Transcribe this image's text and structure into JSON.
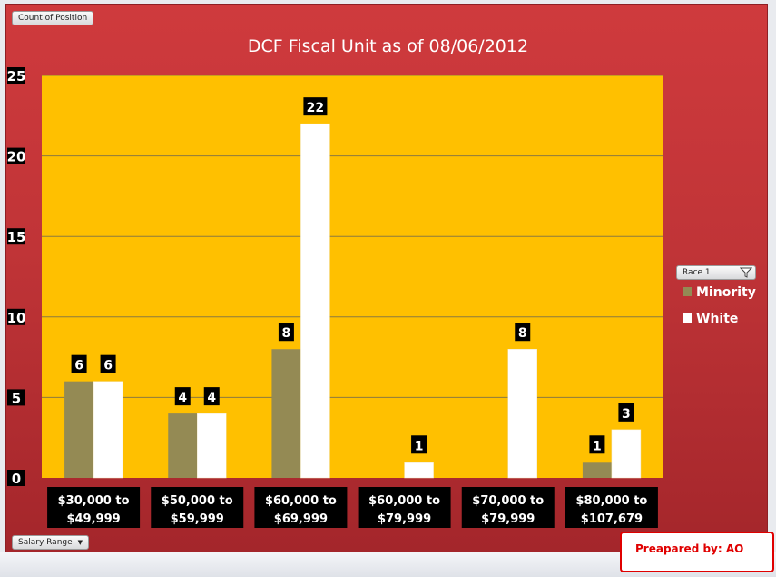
{
  "chart_data": {
    "type": "bar",
    "title": "DCF Fiscal Unit as of 08/06/2012",
    "xlabel": "",
    "ylabel": "",
    "ylim": [
      0,
      25
    ],
    "y_ticks": [
      "0",
      "5",
      "10",
      "15",
      "20",
      "25"
    ],
    "categories": [
      "$30,000 to $49,999",
      "$50,000 to $59,999",
      "$60,000 to $69,999",
      "$60,000 to $79,999",
      "$70,000 to $79,999",
      "$80,000 to $107,679"
    ],
    "category_lines": [
      [
        "$30,000 to",
        "$49,999"
      ],
      [
        "$50,000 to",
        "$59,999"
      ],
      [
        "$60,000 to",
        "$69,999"
      ],
      [
        "$60,000 to",
        "$79,999"
      ],
      [
        "$70,000 to",
        "$79,999"
      ],
      [
        "$80,000 to",
        "$107,679"
      ]
    ],
    "series": [
      {
        "name": "Minority",
        "color": "#948a54",
        "values": [
          6,
          4,
          8,
          null,
          null,
          1
        ]
      },
      {
        "name": "White",
        "color": "#ffffff",
        "values": [
          6,
          4,
          22,
          1,
          8,
          3
        ]
      }
    ],
    "grid": true,
    "legend_position": "right",
    "plot_background": "#ffc000"
  },
  "pivot": {
    "value_field": "Count of Position",
    "axis_field": "Salary Range",
    "legend_field": "Race 1"
  },
  "stamp": "Preapared by: AO"
}
